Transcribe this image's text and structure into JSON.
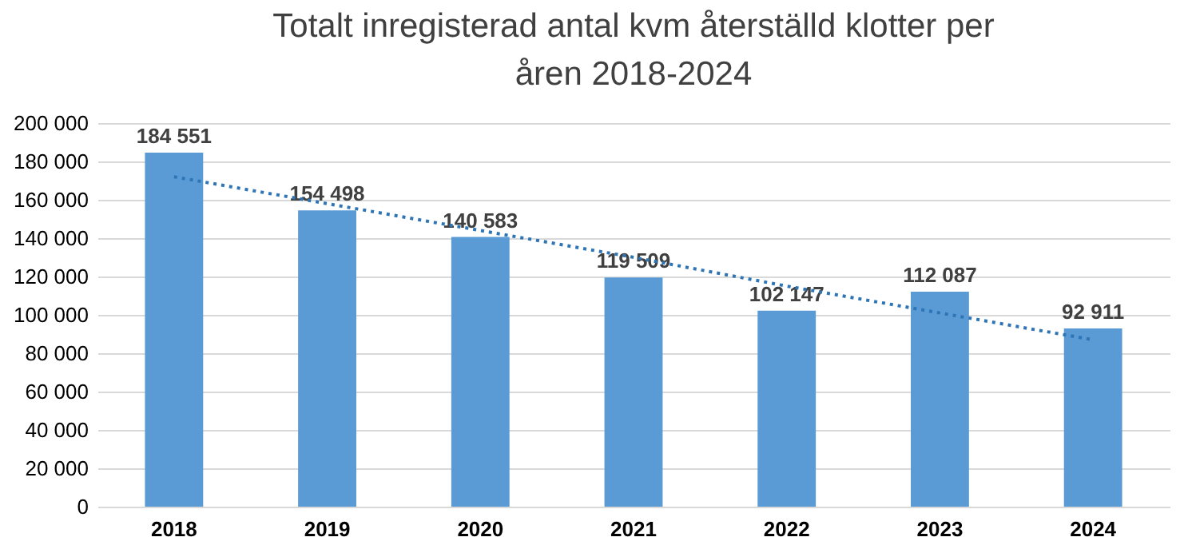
{
  "chart_data": {
    "type": "bar",
    "title": "Totalt inregisterad antal kvm återställd klotter per åren   2018-2024",
    "categories": [
      "2018",
      "2019",
      "2020",
      "2021",
      "2022",
      "2023",
      "2024"
    ],
    "series": [
      {
        "color": "#5b9bd5",
        "values": [
          184551,
          154498,
          140583,
          119509,
          102147,
          112087,
          92911
        ],
        "value_labels": [
          "184 551",
          "154 498",
          "140 583",
          "119 509",
          "102 147",
          "112 087",
          "92 911"
        ]
      },
      {
        "type": "line",
        "color": "#2e75b6",
        "line_style": "dotted",
        "marker": "none",
        "values": [
          172000,
          158000,
          144000,
          130000,
          115000,
          101000,
          87000
        ]
      }
    ],
    "ylim": [
      0,
      200000
    ],
    "yticks": [
      {
        "value": 0,
        "label": "0"
      },
      {
        "value": 20000,
        "label": "20 000"
      },
      {
        "value": 40000,
        "label": "40 000"
      },
      {
        "value": 60000,
        "label": "60 000"
      },
      {
        "value": 80000,
        "label": "80 000"
      },
      {
        "value": 100000,
        "label": "100 000"
      },
      {
        "value": 120000,
        "label": "120 000"
      },
      {
        "value": 140000,
        "label": "140 000"
      },
      {
        "value": 160000,
        "label": "160 000"
      },
      {
        "value": 180000,
        "label": "180 000"
      },
      {
        "value": 200000,
        "label": "200 000"
      }
    ],
    "grid": "y"
  }
}
